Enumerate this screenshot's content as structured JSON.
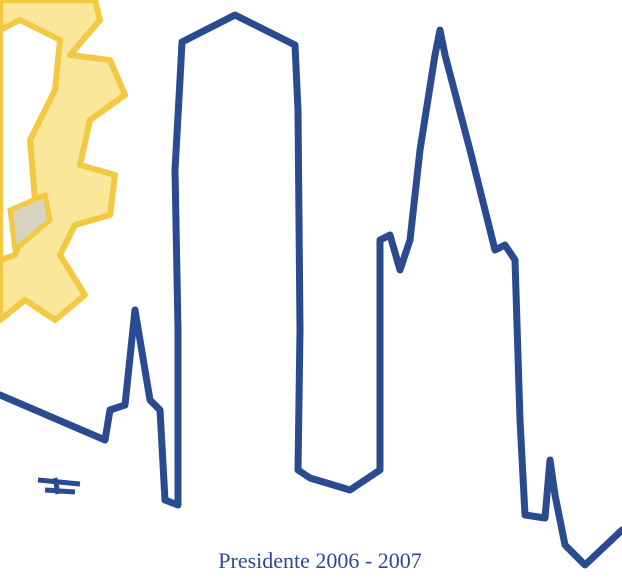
{
  "caption": "Presidente 2006 - 2007"
}
